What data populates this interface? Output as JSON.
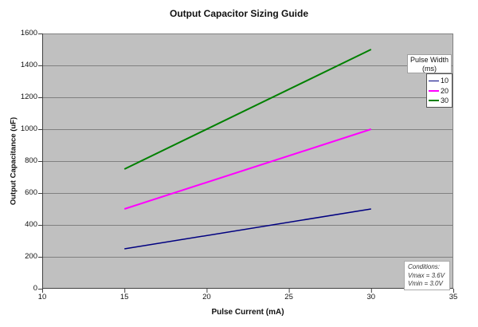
{
  "title": "Output Capacitor Sizing Guide",
  "chart_data": {
    "type": "line",
    "title": "Output Capacitor Sizing Guide",
    "xlabel": "Pulse Current (mA)",
    "ylabel": "Output Capacitance (uF)",
    "xlim": [
      10,
      35
    ],
    "ylim": [
      0,
      1600
    ],
    "xticks": [
      10,
      15,
      20,
      25,
      30,
      35
    ],
    "yticks": [
      0,
      200,
      400,
      600,
      800,
      1000,
      1200,
      1400,
      1600
    ],
    "grid": "horizontal",
    "plot_bg_color": "#c0c0c0",
    "gridline_color": "#808080",
    "axis_color": "#404040",
    "legend_position": "inside-right",
    "legend_title": [
      "Pulse Width",
      "(ms)"
    ],
    "series": [
      {
        "name": "10",
        "color": "#000080",
        "stroke_width": 1.5,
        "points": [
          [
            15,
            250
          ],
          [
            30,
            500
          ]
        ]
      },
      {
        "name": "20",
        "color": "#ff00ff",
        "stroke_width": 2,
        "points": [
          [
            15,
            500
          ],
          [
            30,
            1000
          ]
        ]
      },
      {
        "name": "30",
        "color": "#008000",
        "stroke_width": 2,
        "points": [
          [
            15,
            750
          ],
          [
            30,
            1500
          ]
        ]
      }
    ],
    "annotation": {
      "lines": [
        "Conditions:",
        "Vmax = 3.6V",
        "Vmin = 3.0V"
      ]
    }
  }
}
